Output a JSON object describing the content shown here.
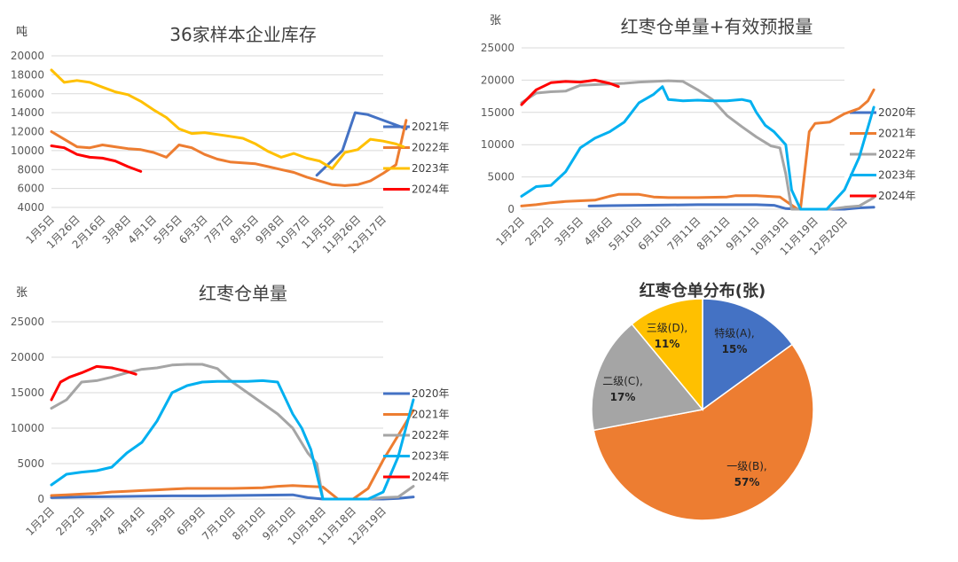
{
  "chart_data": [
    {
      "type": "line",
      "title": "36家样本企业库存",
      "unit_label": "吨",
      "ylim": [
        4000,
        20000
      ],
      "yticks": [
        4000,
        6000,
        8000,
        10000,
        12000,
        14000,
        16000,
        18000,
        20000
      ],
      "x_tick_labels": [
        "1月5日",
        "1月26日",
        "2月16日",
        "3月8日",
        "4月1日",
        "5月5日",
        "6月3日",
        "7月7日",
        "8月5日",
        "9月8日",
        "10月7日",
        "11月5日",
        "11月26日",
        "12月17日"
      ],
      "legend_position": "right",
      "series": [
        {
          "name": "2021年",
          "color": "#4472C4",
          "x": [
            10.4,
            10.9,
            11.4,
            11.9,
            12.4,
            12.9,
            13.4,
            13.9
          ],
          "values": [
            7400,
            8700,
            10000,
            14000,
            13800,
            13300,
            12800,
            12300
          ]
        },
        {
          "name": "2022年",
          "color": "#ED7D31",
          "x": [
            0,
            0.5,
            1,
            1.5,
            2,
            2.5,
            3,
            3.5,
            4,
            4.5,
            5,
            5.5,
            6,
            6.5,
            7,
            7.5,
            8,
            8.5,
            9,
            9.5,
            10,
            10.5,
            11,
            11.5,
            12,
            12.5,
            13,
            13.5,
            13.9
          ],
          "values": [
            12000,
            11200,
            10400,
            10300,
            10600,
            10400,
            10200,
            10100,
            9800,
            9300,
            10600,
            10300,
            9600,
            9100,
            8800,
            8700,
            8600,
            8300,
            8000,
            7700,
            7200,
            6800,
            6400,
            6300,
            6400,
            6800,
            7600,
            8500,
            13200
          ]
        },
        {
          "name": "2023年",
          "color": "#FFC000",
          "x": [
            0,
            0.5,
            1,
            1.5,
            2,
            2.5,
            3,
            3.5,
            4,
            4.5,
            5,
            5.5,
            6,
            6.5,
            7,
            7.5,
            8,
            8.5,
            9,
            9.5,
            10,
            10.5,
            11,
            11.5,
            12,
            12.5,
            13,
            13.5,
            13.8
          ],
          "values": [
            18500,
            17200,
            17400,
            17200,
            16700,
            16200,
            15900,
            15200,
            14300,
            13500,
            12300,
            11800,
            11900,
            11700,
            11500,
            11300,
            10700,
            9900,
            9300,
            9700,
            9200,
            8900,
            8100,
            9800,
            10100,
            11200,
            11000,
            10700,
            10400
          ]
        },
        {
          "name": "2024年",
          "color": "#FF0000",
          "x": [
            0,
            0.5,
            1,
            1.5,
            2,
            2.5,
            3,
            3.5
          ],
          "values": [
            10500,
            10300,
            9600,
            9300,
            9200,
            8900,
            8300,
            7800
          ]
        }
      ]
    },
    {
      "type": "line",
      "title": "红枣仓单量+有效预报量",
      "unit_label": "张",
      "ylim": [
        0,
        25000
      ],
      "yticks": [
        0,
        5000,
        10000,
        15000,
        20000,
        25000
      ],
      "x_tick_labels": [
        "1月2日",
        "2月2日",
        "3月5日",
        "4月6日",
        "5月10日",
        "6月10日",
        "7月11日",
        "8月11日",
        "9月11日",
        "10月19日",
        "11月19日",
        "12月20日"
      ],
      "legend_position": "right",
      "series": [
        {
          "name": "2020年",
          "color": "#4472C4",
          "x": [
            2.3,
            3,
            4,
            5,
            6,
            7,
            8,
            8.6,
            9,
            9.5,
            10,
            10.5,
            11,
            11.5,
            12
          ],
          "values": [
            500,
            550,
            600,
            650,
            700,
            700,
            700,
            600,
            100,
            0,
            0,
            0,
            0,
            200,
            300
          ]
        },
        {
          "name": "2021年",
          "color": "#ED7D31",
          "x": [
            0,
            0.5,
            1,
            1.5,
            2,
            2.5,
            3,
            3.3,
            4,
            4.5,
            5,
            6,
            7,
            7.3,
            8,
            8.8,
            9.4,
            9.5,
            9.8,
            10,
            10.5,
            11,
            11.5,
            11.8,
            12
          ],
          "values": [
            500,
            700,
            1000,
            1200,
            1300,
            1400,
            2000,
            2300,
            2300,
            1900,
            1800,
            1800,
            1900,
            2100,
            2100,
            1900,
            0,
            0,
            12000,
            13300,
            13500,
            14800,
            15600,
            16800,
            18500
          ]
        },
        {
          "name": "2022年",
          "color": "#A5A5A5",
          "x": [
            0,
            0.5,
            1,
            1.5,
            2,
            2.5,
            3,
            3.5,
            4,
            4.5,
            5,
            5.5,
            6,
            6.5,
            7,
            7.5,
            8,
            8.5,
            8.8,
            9,
            9.2,
            9.5,
            10,
            10.5,
            11,
            11.5,
            12
          ],
          "values": [
            16500,
            18000,
            18200,
            18300,
            19200,
            19300,
            19400,
            19500,
            19700,
            19800,
            19900,
            19800,
            18500,
            17000,
            14500,
            12800,
            11200,
            9800,
            9500,
            5500,
            0,
            0,
            0,
            0,
            300,
            500,
            1800
          ]
        },
        {
          "name": "2023年",
          "color": "#00B0F0",
          "x": [
            0,
            0.5,
            1,
            1.5,
            2,
            2.5,
            3,
            3.5,
            4,
            4.5,
            4.8,
            5,
            5.5,
            6,
            6.5,
            7,
            7.5,
            7.8,
            8,
            8.3,
            8.6,
            9,
            9.2,
            9.5,
            10,
            10.4,
            10.8,
            11,
            11.5,
            12
          ],
          "values": [
            2000,
            3500,
            3700,
            5800,
            9500,
            11000,
            12000,
            13500,
            16500,
            17800,
            19000,
            17000,
            16800,
            16900,
            16800,
            16800,
            17000,
            16700,
            15000,
            13000,
            12000,
            10000,
            3000,
            0,
            0,
            0,
            2000,
            3000,
            8000,
            15800
          ]
        },
        {
          "name": "2024年",
          "color": "#FF0000",
          "x": [
            0,
            0.5,
            1,
            1.5,
            2,
            2.5,
            3,
            3.3
          ],
          "values": [
            16200,
            18500,
            19600,
            19800,
            19700,
            20000,
            19500,
            19000
          ]
        }
      ]
    },
    {
      "type": "line",
      "title": "红枣仓单量",
      "unit_label": "张",
      "ylim": [
        0,
        25000
      ],
      "yticks": [
        0,
        5000,
        10000,
        15000,
        20000,
        25000
      ],
      "x_tick_labels": [
        "1月2日",
        "2月2日",
        "3月4日",
        "4月4日",
        "5月9日",
        "6月9日",
        "7月10日",
        "8月10日",
        "9月10日",
        "10月18日",
        "11月18日",
        "12月19日"
      ],
      "legend_position": "right",
      "series": [
        {
          "name": "2020年",
          "color": "#4472C4",
          "x": [
            0,
            1,
            2,
            3,
            4,
            5,
            6,
            7,
            8,
            8.5,
            9,
            10,
            10.5,
            11,
            11.5,
            12
          ],
          "values": [
            200,
            300,
            350,
            400,
            450,
            450,
            500,
            550,
            600,
            200,
            0,
            0,
            0,
            0,
            100,
            300
          ]
        },
        {
          "name": "2021年",
          "color": "#ED7D31",
          "x": [
            0,
            0.5,
            1,
            1.5,
            2,
            2.5,
            3,
            3.5,
            4,
            4.5,
            5,
            6,
            7,
            7.5,
            8,
            8.5,
            9,
            9.5,
            10,
            10.5,
            11,
            11.5,
            12
          ],
          "values": [
            500,
            600,
            700,
            800,
            1000,
            1100,
            1200,
            1300,
            1400,
            1500,
            1500,
            1500,
            1600,
            1800,
            1900,
            1800,
            1700,
            0,
            0,
            1500,
            5500,
            9000,
            12500
          ]
        },
        {
          "name": "2022年",
          "color": "#A5A5A5",
          "x": [
            0,
            0.5,
            1,
            1.5,
            2,
            2.5,
            3,
            3.5,
            4,
            4.5,
            5,
            5.5,
            6,
            6.5,
            7,
            7.5,
            8,
            8.5,
            8.8,
            9,
            9.5,
            10,
            10.5,
            11,
            11.5,
            12
          ],
          "values": [
            12800,
            14000,
            16500,
            16700,
            17200,
            17800,
            18300,
            18500,
            18900,
            19000,
            19000,
            18400,
            16500,
            15000,
            13500,
            12000,
            10000,
            6500,
            5000,
            0,
            0,
            0,
            0,
            200,
            300,
            1800
          ]
        },
        {
          "name": "2023年",
          "color": "#00B0F0",
          "x": [
            0,
            0.5,
            1,
            1.5,
            2,
            2.5,
            3,
            3.5,
            4,
            4.5,
            5,
            5.5,
            6,
            6.5,
            7,
            7.5,
            8,
            8.3,
            8.6,
            9,
            9.5,
            10,
            10.5,
            11,
            11.5,
            12
          ],
          "values": [
            2000,
            3500,
            3800,
            4000,
            4500,
            6500,
            8000,
            11000,
            15000,
            16000,
            16500,
            16600,
            16600,
            16600,
            16700,
            16500,
            12000,
            10000,
            7000,
            0,
            0,
            0,
            0,
            1000,
            6000,
            14000
          ]
        },
        {
          "name": "2024年",
          "color": "#FF0000",
          "x": [
            0,
            0.3,
            0.6,
            1,
            1.5,
            2,
            2.5,
            2.8
          ],
          "values": [
            14000,
            16500,
            17200,
            17800,
            18700,
            18500,
            18000,
            17600
          ]
        }
      ]
    },
    {
      "type": "pie",
      "title": "红枣仓单分布(张)",
      "slices": [
        {
          "label": "特级(A),",
          "pct_label": "15%",
          "value": 15,
          "color": "#4472C4"
        },
        {
          "label": "一级(B),",
          "pct_label": "57%",
          "value": 57,
          "color": "#ED7D31"
        },
        {
          "label": "二级(C),",
          "pct_label": "17%",
          "value": 17,
          "color": "#A5A5A5"
        },
        {
          "label": "三级(D),",
          "pct_label": "11%",
          "value": 11,
          "color": "#FFC000"
        }
      ]
    }
  ]
}
